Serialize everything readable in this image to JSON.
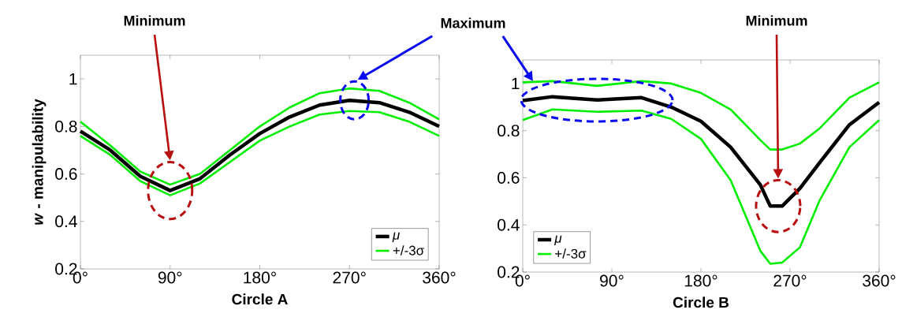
{
  "chart_data": [
    {
      "type": "line",
      "xlabel": "Circle A",
      "ylabel": "*w* - manipulability",
      "x": [
        0,
        30,
        60,
        90,
        120,
        150,
        180,
        210,
        240,
        270,
        300,
        330,
        360
      ],
      "series": [
        {
          "name": "*μ*",
          "color": "#000000",
          "values": [
            0.78,
            0.7,
            0.59,
            0.53,
            0.58,
            0.68,
            0.77,
            0.84,
            0.89,
            0.91,
            0.9,
            0.86,
            0.8
          ]
        },
        {
          "name": "+/-3σ",
          "color": "#00ee00",
          "values": [
            0.82,
            0.72,
            0.61,
            0.555,
            0.6,
            0.7,
            0.8,
            0.88,
            0.94,
            0.96,
            0.95,
            0.9,
            0.83
          ]
        },
        {
          "color": "#00ee00",
          "values": [
            0.76,
            0.68,
            0.57,
            0.51,
            0.56,
            0.65,
            0.74,
            0.8,
            0.85,
            0.865,
            0.86,
            0.82,
            0.76
          ]
        }
      ],
      "xlim": [
        0,
        360
      ],
      "ylim": [
        0.2,
        1.1
      ],
      "xticks": [
        {
          "value": 0,
          "label": "0°"
        },
        {
          "value": 90,
          "label": "90°"
        },
        {
          "value": 180,
          "label": "180°"
        },
        {
          "value": 270,
          "label": "270°"
        },
        {
          "value": 360,
          "label": "360°"
        }
      ],
      "yticks": [
        0.2,
        0.4,
        0.6,
        0.8,
        1
      ],
      "legend": "bottom right",
      "grid": false,
      "annotations": [
        "Minimum",
        "Maximum"
      ]
    },
    {
      "type": "line",
      "xlabel": "Circle B",
      "x": [
        0,
        30,
        75,
        120,
        150,
        180,
        210,
        240,
        250,
        262,
        280,
        300,
        330,
        360
      ],
      "series": [
        {
          "name": "*μ*",
          "color": "#000000",
          "values": [
            0.928,
            0.944,
            0.93,
            0.94,
            0.9,
            0.84,
            0.73,
            0.57,
            0.48,
            0.48,
            0.555,
            0.665,
            0.825,
            0.92
          ]
        },
        {
          "name": "+/-3σ",
          "color": "#00ee00",
          "values": [
            1.005,
            1.01,
            0.99,
            1.01,
            1.0,
            0.96,
            0.89,
            0.76,
            0.72,
            0.72,
            0.745,
            0.81,
            0.94,
            1.005
          ]
        },
        {
          "color": "#00ee00",
          "values": [
            0.845,
            0.89,
            0.88,
            0.885,
            0.85,
            0.765,
            0.59,
            0.29,
            0.235,
            0.24,
            0.305,
            0.505,
            0.73,
            0.845
          ]
        }
      ],
      "xlim": [
        0,
        360
      ],
      "ylim": [
        0.2,
        1.1
      ],
      "xticks": [
        {
          "value": 0,
          "label": "0°"
        },
        {
          "value": 90,
          "label": "90°"
        },
        {
          "value": 180,
          "label": "180°"
        },
        {
          "value": 270,
          "label": "270°"
        },
        {
          "value": 360,
          "label": "360°"
        }
      ],
      "yticks": [
        0.2,
        0.4,
        0.6,
        0.8,
        1
      ],
      "legend": "bottom left",
      "grid": false,
      "annotations": [
        "Minimum"
      ]
    }
  ]
}
